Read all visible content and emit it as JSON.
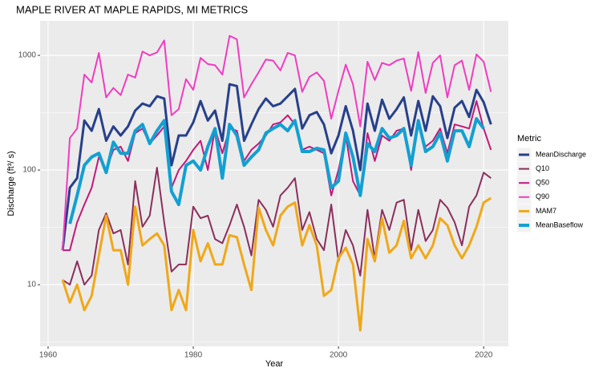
{
  "chart_data": {
    "type": "line",
    "title": "MAPLE RIVER AT MAPLE RAPIDS, MI  METRICS",
    "x_label": "Year",
    "y_label": "Discharge (ft³/ s)",
    "legend_title": "Metric",
    "log_y": true,
    "grid": true,
    "xlim": [
      1958.9,
      2023.4
    ],
    "xticks": [
      1960,
      1980,
      2000,
      2020
    ],
    "ylim": [
      2.9,
      2000
    ],
    "yticks": [
      10,
      100,
      1000
    ],
    "x": [
      1962,
      1963,
      1964,
      1965,
      1966,
      1967,
      1968,
      1969,
      1970,
      1971,
      1972,
      1973,
      1974,
      1975,
      1976,
      1977,
      1978,
      1979,
      1980,
      1981,
      1982,
      1983,
      1984,
      1985,
      1986,
      1987,
      1988,
      1989,
      1990,
      1991,
      1992,
      1993,
      1994,
      1995,
      1996,
      1997,
      1998,
      1999,
      2000,
      2001,
      2002,
      2003,
      2004,
      2005,
      2006,
      2007,
      2008,
      2009,
      2010,
      2011,
      2012,
      2013,
      2014,
      2015,
      2016,
      2017,
      2018,
      2019,
      2020,
      2021
    ],
    "series": [
      {
        "name": "MeanDischarge",
        "color": "#27408b",
        "width": 3,
        "values": [
          20,
          70,
          85,
          270,
          220,
          340,
          180,
          240,
          200,
          240,
          330,
          380,
          360,
          440,
          420,
          110,
          200,
          200,
          260,
          400,
          270,
          330,
          180,
          560,
          540,
          180,
          250,
          340,
          420,
          360,
          380,
          440,
          510,
          230,
          300,
          320,
          250,
          140,
          200,
          360,
          220,
          100,
          380,
          220,
          410,
          280,
          340,
          430,
          200,
          400,
          220,
          440,
          360,
          190,
          350,
          400,
          290,
          500,
          390,
          250
        ]
      },
      {
        "name": "Q10",
        "color": "#8b2f5c",
        "width": 2,
        "values": [
          11,
          10,
          16,
          10,
          12,
          30,
          42,
          28,
          30,
          15,
          80,
          32,
          40,
          105,
          35,
          13,
          15,
          15,
          48,
          38,
          40,
          25,
          23,
          33,
          50,
          32,
          18,
          55,
          45,
          32,
          60,
          70,
          85,
          30,
          43,
          25,
          20,
          50,
          16,
          30,
          22,
          12,
          45,
          17,
          45,
          30,
          52,
          55,
          20,
          45,
          24,
          30,
          55,
          47,
          35,
          22,
          48,
          60,
          95,
          85
        ]
      },
      {
        "name": "Q50",
        "color": "#c2187a",
        "width": 2,
        "values": [
          20,
          20,
          35,
          50,
          70,
          130,
          100,
          150,
          160,
          120,
          210,
          230,
          170,
          200,
          240,
          70,
          100,
          120,
          150,
          180,
          100,
          230,
          140,
          230,
          220,
          120,
          150,
          170,
          200,
          250,
          260,
          300,
          250,
          150,
          160,
          150,
          140,
          60,
          100,
          200,
          80,
          60,
          210,
          120,
          200,
          180,
          220,
          230,
          100,
          250,
          160,
          180,
          230,
          140,
          250,
          240,
          230,
          400,
          230,
          150
        ]
      },
      {
        "name": "Q90",
        "color": "#f03cc0",
        "width": 2,
        "values": [
          20,
          190,
          230,
          680,
          580,
          1050,
          430,
          520,
          450,
          680,
          640,
          1080,
          1000,
          1060,
          1350,
          300,
          340,
          620,
          500,
          950,
          840,
          820,
          680,
          1480,
          1380,
          430,
          560,
          710,
          920,
          900,
          740,
          1050,
          1000,
          480,
          650,
          710,
          600,
          280,
          490,
          830,
          560,
          240,
          880,
          610,
          860,
          820,
          900,
          940,
          490,
          1070,
          470,
          860,
          1000,
          430,
          820,
          900,
          500,
          1020,
          880,
          480
        ]
      },
      {
        "name": "MAM7",
        "color": "#f0a818",
        "width": 3,
        "values": [
          11,
          7,
          10,
          6,
          8,
          18,
          40,
          20,
          20,
          10,
          48,
          22,
          25,
          28,
          22,
          6,
          9,
          6,
          30,
          16,
          23,
          15,
          15,
          27,
          26,
          15,
          9,
          47,
          30,
          22,
          40,
          48,
          52,
          22,
          33,
          22,
          8,
          9,
          17,
          21,
          15,
          4,
          25,
          16,
          38,
          19,
          22,
          36,
          17,
          22,
          17,
          22,
          38,
          33,
          22,
          17,
          22,
          32,
          52,
          57
        ]
      },
      {
        "name": "MeanBaseflow",
        "color": "#12a0d2",
        "width": 4,
        "values": [
          null,
          34,
          60,
          110,
          130,
          140,
          95,
          175,
          140,
          140,
          220,
          250,
          170,
          220,
          270,
          65,
          50,
          110,
          120,
          100,
          160,
          230,
          85,
          250,
          200,
          110,
          130,
          150,
          210,
          230,
          250,
          220,
          270,
          145,
          145,
          155,
          150,
          70,
          80,
          210,
          130,
          60,
          170,
          145,
          230,
          190,
          200,
          230,
          110,
          270,
          145,
          160,
          210,
          120,
          220,
          220,
          160,
          280,
          230,
          null
        ]
      }
    ]
  }
}
